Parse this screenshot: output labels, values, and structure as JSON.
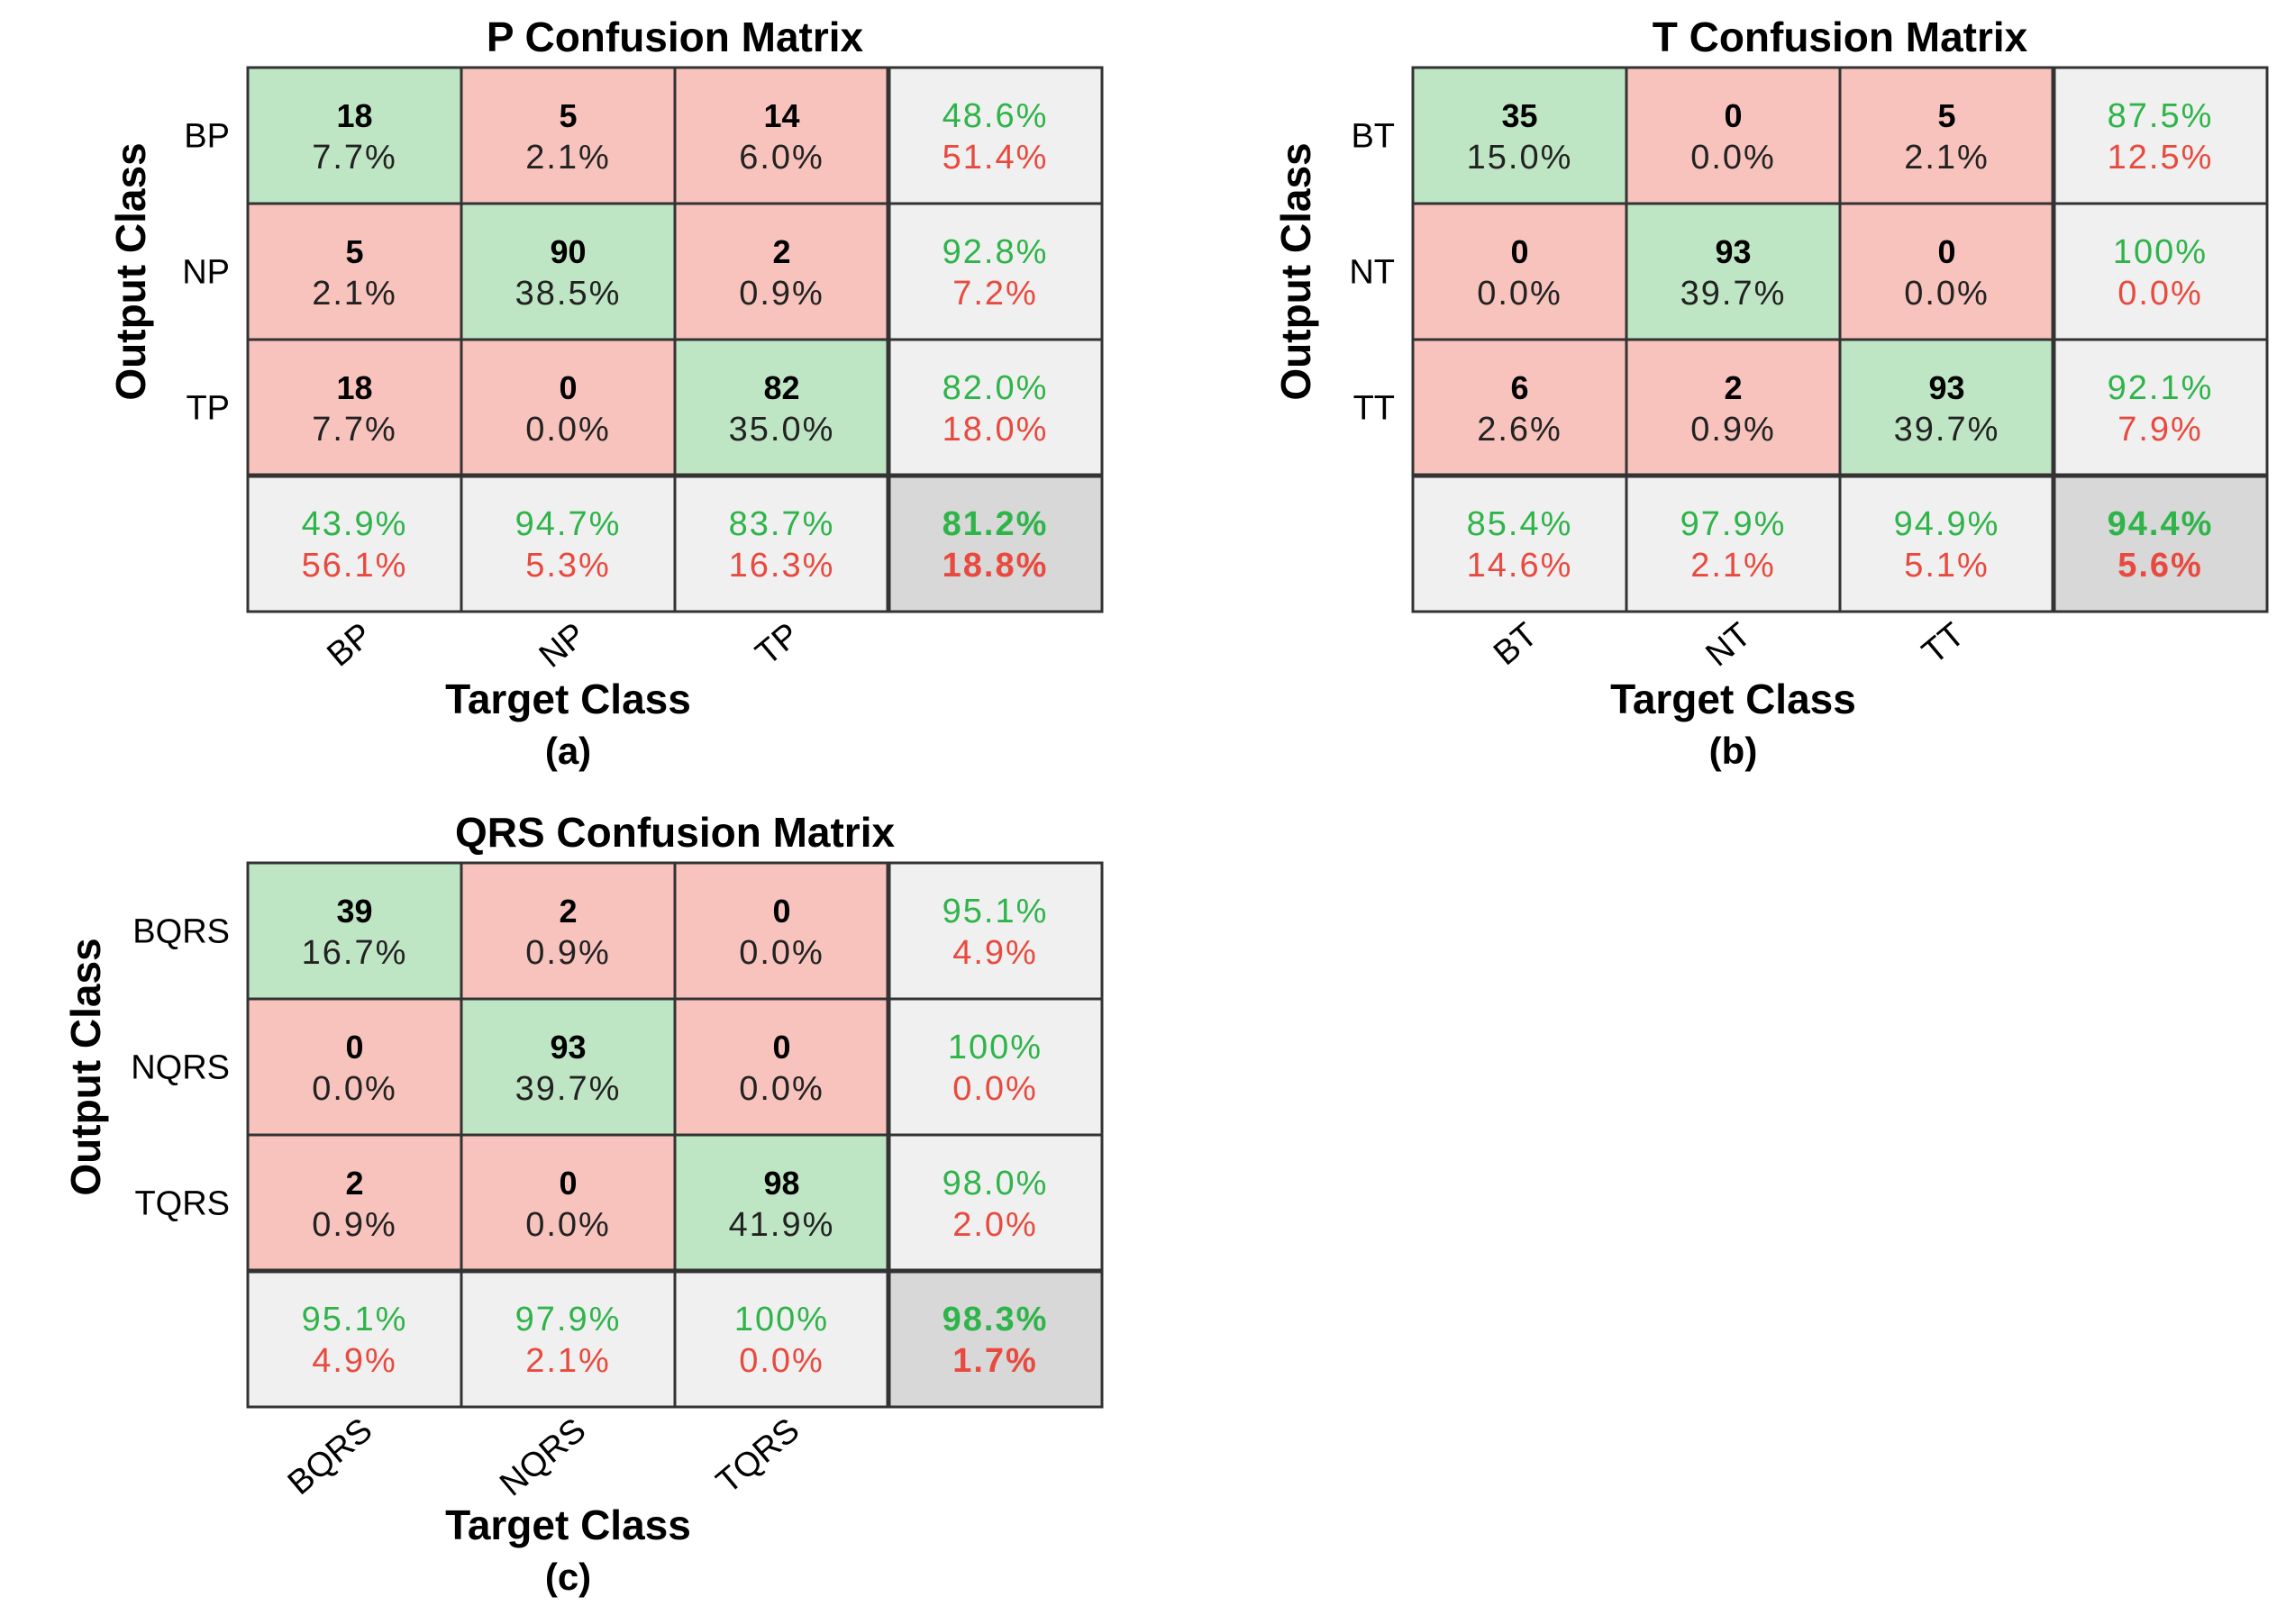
{
  "colors": {
    "diag": "#bfe6c4",
    "offdiag": "#f8c3bd",
    "summary": "#f0f0f0",
    "corner": "#d8d8d8",
    "good_text": "#2fb44a",
    "bad_text": "#e84a3f"
  },
  "chart_data": [
    {
      "type": "heatmap",
      "title": "P Confusion Matrix",
      "xlabel": "Target Class",
      "ylabel": "Output Class",
      "caption": "(a)",
      "classes": [
        "BP",
        "NP",
        "TP"
      ],
      "counts": [
        [
          18,
          5,
          14
        ],
        [
          5,
          90,
          2
        ],
        [
          18,
          0,
          82
        ]
      ],
      "percents": [
        [
          "7.7%",
          "2.1%",
          "6.0%"
        ],
        [
          "2.1%",
          "38.5%",
          "0.9%"
        ],
        [
          "7.7%",
          "0.0%",
          "35.0%"
        ]
      ],
      "row_summary": [
        [
          "48.6%",
          "51.4%"
        ],
        [
          "92.8%",
          "7.2%"
        ],
        [
          "82.0%",
          "18.0%"
        ]
      ],
      "col_summary": [
        [
          "43.9%",
          "56.1%"
        ],
        [
          "94.7%",
          "5.3%"
        ],
        [
          "83.7%",
          "16.3%"
        ]
      ],
      "overall": [
        "81.2%",
        "18.8%"
      ]
    },
    {
      "type": "heatmap",
      "title": "T Confusion Matrix",
      "xlabel": "Target Class",
      "ylabel": "Output Class",
      "caption": "(b)",
      "classes": [
        "BT",
        "NT",
        "TT"
      ],
      "counts": [
        [
          35,
          0,
          5
        ],
        [
          0,
          93,
          0
        ],
        [
          6,
          2,
          93
        ]
      ],
      "percents": [
        [
          "15.0%",
          "0.0%",
          "2.1%"
        ],
        [
          "0.0%",
          "39.7%",
          "0.0%"
        ],
        [
          "2.6%",
          "0.9%",
          "39.7%"
        ]
      ],
      "row_summary": [
        [
          "87.5%",
          "12.5%"
        ],
        [
          "100%",
          "0.0%"
        ],
        [
          "92.1%",
          "7.9%"
        ]
      ],
      "col_summary": [
        [
          "85.4%",
          "14.6%"
        ],
        [
          "97.9%",
          "2.1%"
        ],
        [
          "94.9%",
          "5.1%"
        ]
      ],
      "overall": [
        "94.4%",
        "5.6%"
      ]
    },
    {
      "type": "heatmap",
      "title": "QRS Confusion Matrix",
      "xlabel": "Target Class",
      "ylabel": "Output Class",
      "caption": "(c)",
      "classes": [
        "BQRS",
        "NQRS",
        "TQRS"
      ],
      "counts": [
        [
          39,
          2,
          0
        ],
        [
          0,
          93,
          0
        ],
        [
          2,
          0,
          98
        ]
      ],
      "percents": [
        [
          "16.7%",
          "0.9%",
          "0.0%"
        ],
        [
          "0.0%",
          "39.7%",
          "0.0%"
        ],
        [
          "0.9%",
          "0.0%",
          "41.9%"
        ]
      ],
      "row_summary": [
        [
          "95.1%",
          "4.9%"
        ],
        [
          "100%",
          "0.0%"
        ],
        [
          "98.0%",
          "2.0%"
        ]
      ],
      "col_summary": [
        [
          "95.1%",
          "4.9%"
        ],
        [
          "97.9%",
          "2.1%"
        ],
        [
          "100%",
          "0.0%"
        ]
      ],
      "overall": [
        "98.3%",
        "1.7%"
      ]
    }
  ]
}
